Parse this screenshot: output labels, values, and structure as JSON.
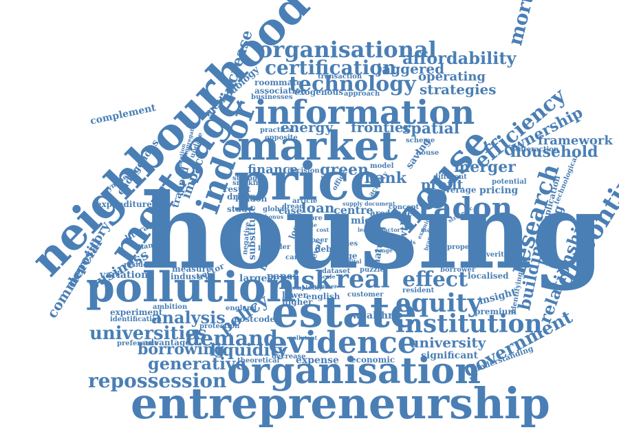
{
  "text_color": "#4a7fb5",
  "background": "#ffffff",
  "words": [
    "housing",
    "entrepreneurship",
    "neighbourhood",
    "price",
    "market",
    "estate",
    "pollution",
    "information",
    "organisation",
    "mortgage",
    "evidence",
    "house",
    "indoor",
    "real",
    "risk",
    "radon",
    "institution",
    "equity",
    "organisational",
    "certification",
    "technology",
    "affordability",
    "efficiency",
    "research",
    "discontinuity",
    "mortgagesg",
    "building",
    "demand",
    "effect",
    "repossession",
    "universities",
    "analysis",
    "policy",
    "liquidity",
    "generative",
    "borrowing",
    "government",
    "relationship",
    "ownership",
    "household",
    "merger",
    "green",
    "bank",
    "energy",
    "frontier",
    "spatial",
    "profit",
    "finance",
    "loan",
    "centre",
    "strategies",
    "operating",
    "jaggered",
    "increase",
    "methodology",
    "impact",
    "business",
    "depository",
    "commercial",
    "university",
    "framework",
    "planning",
    "growth",
    "natural",
    "complement",
    "endogenous",
    "trapped",
    "update",
    "substitute",
    "help",
    "paper",
    "sector",
    "largest",
    "wealthr",
    "significant",
    "expense",
    "economic",
    "understanding",
    "insight",
    "premium",
    "variation",
    "experiment",
    "ambition",
    "identification",
    "preference",
    "advantage",
    "theoretical",
    "decrease",
    "postcode",
    "protection",
    "england",
    "industry",
    "measure",
    "english",
    "lower",
    "higher",
    "customer",
    "resident",
    "localised",
    "severity",
    "borrower",
    "property",
    "implication",
    "technological",
    "potential",
    "pricing",
    "average",
    "different",
    "interaction",
    "scheme",
    "transaction",
    "roommate",
    "association",
    "businesses",
    "exogenous",
    "approach",
    "saving",
    "model",
    "concept",
    "lender",
    "area",
    "micro",
    "puzzle",
    "debt",
    "judge",
    "cities",
    "peer",
    "global",
    "london",
    "study",
    "case",
    "dread",
    "driver",
    "result",
    "smoking",
    "strength",
    "decision",
    "article",
    "office",
    "activity",
    "supply",
    "document",
    "level",
    "local",
    "provider",
    "negative",
    "cancer",
    "capital",
    "dataset",
    "scale",
    "number",
    "complexity",
    "pollutant",
    "identifying",
    "strategic",
    "examine",
    "branches",
    "residential",
    "change",
    "literature",
    "expenditure",
    "symmetric",
    "limitation",
    "aggregate",
    "practical",
    "opposite",
    "house",
    "bonus",
    "more",
    "style",
    "lease",
    "factor",
    "manual",
    "goods",
    "range",
    "cost"
  ]
}
